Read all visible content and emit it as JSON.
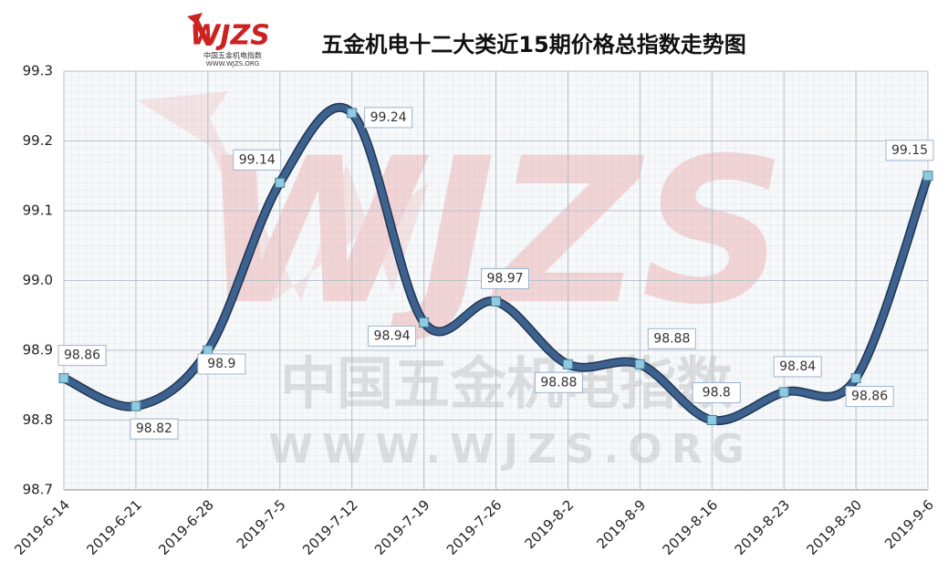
{
  "chart_data": {
    "type": "line",
    "title": "五金机电十二大类近15期价格总指数走势图",
    "logo": "WJZS",
    "logo_name": "中国五金机电指数",
    "logo_url": "WWW.WJZS.ORG",
    "categories": [
      "2019-6-14",
      "2019-6-21",
      "2019-6-28",
      "2019-7-5",
      "2019-7-12",
      "2019-7-19",
      "2019-7-26",
      "2019-8-2",
      "2019-8-9",
      "2019-8-16",
      "2019-8-23",
      "2019-8-30",
      "2019-9-6"
    ],
    "values": [
      98.86,
      98.82,
      98.9,
      99.14,
      99.24,
      98.94,
      98.97,
      98.88,
      98.88,
      98.8,
      98.84,
      98.86,
      99.15
    ],
    "color": "#3d6290",
    "marker_color": "#8ecbe0",
    "ylim": [
      98.7,
      99.3
    ],
    "yticks": [
      98.7,
      98.8,
      98.9,
      {
        "value": 99,
        "label": "99.0"
      },
      99.1,
      99.2,
      99.3
    ],
    "grid": true
  }
}
